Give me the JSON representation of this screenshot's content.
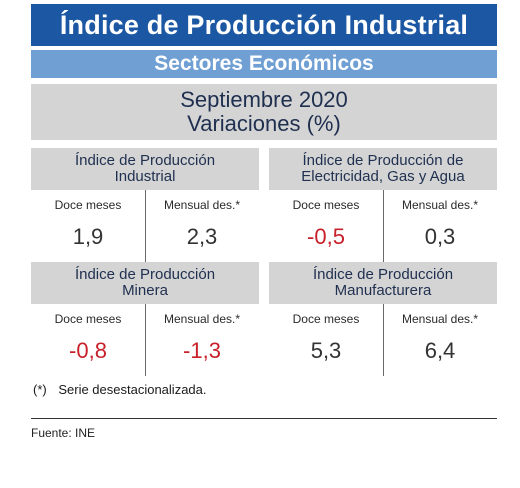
{
  "header": {
    "title": "Índice de Producción Industrial",
    "subtitle": "Sectores Económicos",
    "period": "Septiembre 2020",
    "measure": "Variaciones (%)"
  },
  "panels": [
    {
      "title_line1": "Índice de Producción",
      "title_line2": "Industrial",
      "col1_label": "Doce meses",
      "col2_label": "Mensual des.*",
      "col1_value": "1,9",
      "col2_value": "2,3"
    },
    {
      "title_line1": "Índice de Producción de",
      "title_line2": "Electricidad, Gas y Agua",
      "col1_label": "Doce meses",
      "col2_label": "Mensual des.*",
      "col1_value": "-0,5",
      "col2_value": "0,3"
    },
    {
      "title_line1": "Índice de Producción",
      "title_line2": "Minera",
      "col1_label": "Doce meses",
      "col2_label": "Mensual des.*",
      "col1_value": "-0,8",
      "col2_value": "-1,3"
    },
    {
      "title_line1": "Índice de Producción",
      "title_line2": "Manufacturera",
      "col1_label": "Doce meses",
      "col2_label": "Mensual des.*",
      "col1_value": "5,3",
      "col2_value": "6,4"
    }
  ],
  "footnote": {
    "mark": "(*)",
    "text": "Serie desestacionalizada."
  },
  "source": "Fuente: INE",
  "colors": {
    "title_bg": "#1b57a3",
    "subtitle_bg": "#6f9fd3",
    "panel_bg": "#d4d4d4",
    "negative": "#c8202a"
  }
}
